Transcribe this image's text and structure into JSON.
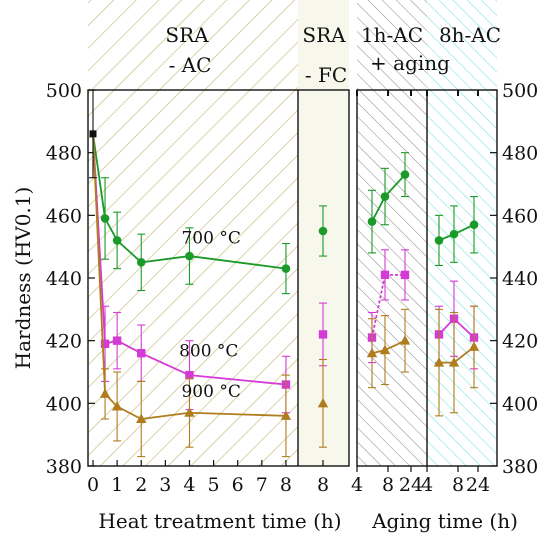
{
  "chart_data": {
    "type": "line",
    "ylabel": "Hardness (HV0.1)",
    "xlabel_left": "Heat treatment time (h)",
    "xlabel_right": "Aging time (h)",
    "ylim": [
      380,
      500
    ],
    "yticks": [
      380,
      400,
      420,
      440,
      460,
      480,
      500
    ],
    "regions": [
      {
        "key": "sra_ac",
        "label_lines": [
          "SRA",
          "- AC"
        ]
      },
      {
        "key": "sra_fc",
        "label_lines": [
          "SRA",
          "- FC"
        ]
      },
      {
        "key": "ac1h",
        "label_lines": [
          "1h-AC",
          "+ aging"
        ]
      },
      {
        "key": "ac8h",
        "label_lines": [
          "8h-AC",
          ""
        ]
      }
    ],
    "panels": [
      {
        "key": "sra_ac",
        "xlim": [
          0,
          8.5
        ],
        "xticks": [
          0,
          1,
          2,
          3,
          4,
          5,
          6,
          7,
          8
        ],
        "initial": {
          "x": 0,
          "y": 486,
          "err": 14,
          "color": "#111111"
        },
        "series": [
          {
            "name": "700 °C",
            "color": "#1a9a28",
            "marker": "circle",
            "points": [
              [
                0,
                486,
                0
              ],
              [
                0.5,
                459,
                13
              ],
              [
                1,
                452,
                9
              ],
              [
                2,
                445,
                9
              ],
              [
                4,
                447,
                9
              ],
              [
                8,
                443,
                8
              ]
            ]
          },
          {
            "name": "800 °C",
            "color": "#d63ad6",
            "marker": "square",
            "points": [
              [
                0,
                486,
                0
              ],
              [
                0.5,
                419,
                12
              ],
              [
                1,
                420,
                9
              ],
              [
                2,
                416,
                9
              ],
              [
                4,
                409,
                11
              ],
              [
                8,
                406,
                9
              ]
            ]
          },
          {
            "name": "900 °C",
            "color": "#b07d1e",
            "marker": "triangle",
            "points": [
              [
                0,
                486,
                0
              ],
              [
                0.5,
                403,
                8
              ],
              [
                1,
                399,
                11
              ],
              [
                2,
                395,
                12
              ],
              [
                4,
                397,
                11
              ],
              [
                8,
                396,
                13
              ]
            ]
          }
        ],
        "annotations": [
          {
            "text": "700 °C",
            "x": 4.9,
            "y": 451
          },
          {
            "text": "800 °C",
            "x": 4.8,
            "y": 415
          },
          {
            "text": "900 °C",
            "x": 4.9,
            "y": 402
          }
        ]
      },
      {
        "key": "sra_fc",
        "xticks": [
          8
        ],
        "series": [
          {
            "name": "700 °C",
            "color": "#1a9a28",
            "marker": "circle",
            "points": [
              [
                8,
                455,
                8
              ]
            ]
          },
          {
            "name": "800 °C",
            "color": "#d63ad6",
            "marker": "square",
            "points": [
              [
                8,
                422,
                10
              ]
            ]
          },
          {
            "name": "900 °C",
            "color": "#b07d1e",
            "marker": "triangle",
            "points": [
              [
                8,
                400,
                14
              ]
            ]
          }
        ]
      },
      {
        "key": "aging",
        "xticks_top": [
          4,
          8,
          24
        ],
        "xticks_1h": [
          4,
          8,
          24
        ],
        "xticks_8h": [
          4,
          8,
          24
        ],
        "series": [
          {
            "name": "700 °C",
            "color": "#1a9a28",
            "marker": "circle",
            "points_1h": [
              [
                4,
                458,
                10
              ],
              [
                8,
                466,
                9
              ],
              [
                24,
                473,
                7
              ]
            ],
            "points_8h": [
              [
                4,
                452,
                8
              ],
              [
                8,
                454,
                9
              ],
              [
                24,
                457,
                9
              ]
            ]
          },
          {
            "name": "800 °C",
            "color": "#d63ad6",
            "marker": "square",
            "points_1h": [
              [
                4,
                421,
                8
              ],
              [
                8,
                441,
                8
              ],
              [
                24,
                441,
                8
              ]
            ],
            "points_8h": [
              [
                4,
                422,
                9
              ],
              [
                8,
                427,
                12
              ],
              [
                24,
                421,
                10
              ]
            ]
          },
          {
            "name": "900 °C",
            "color": "#b07d1e",
            "marker": "triangle",
            "points_1h": [
              [
                4,
                416,
                11
              ],
              [
                8,
                417,
                11
              ],
              [
                24,
                420,
                10
              ]
            ],
            "points_8h": [
              [
                4,
                413,
                17
              ],
              [
                8,
                413,
                16
              ],
              [
                24,
                418,
                13
              ]
            ]
          }
        ]
      }
    ]
  }
}
